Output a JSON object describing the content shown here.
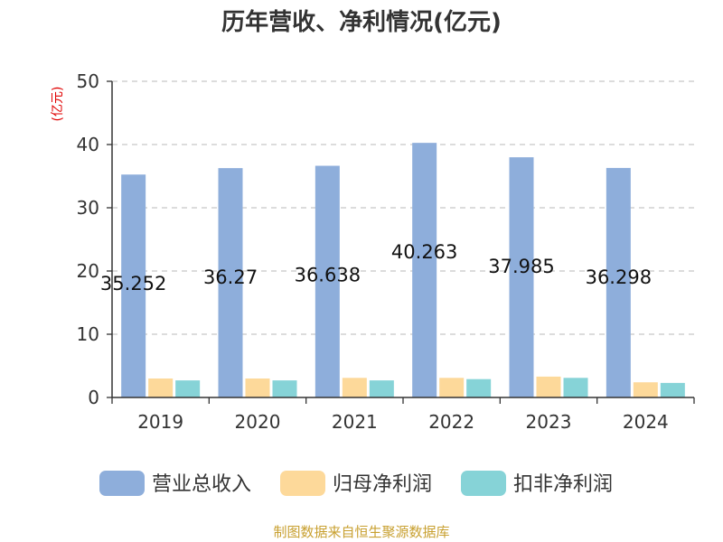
{
  "chart_data": {
    "type": "bar",
    "title": "历年营收、净利情况(亿元)",
    "ylabel": "(亿元)",
    "xlabel": "",
    "categories": [
      "2019",
      "2020",
      "2021",
      "2022",
      "2023",
      "2024"
    ],
    "ylim": [
      0,
      50
    ],
    "yticks": [
      0,
      10,
      20,
      30,
      40,
      50
    ],
    "grid": true,
    "legend_position": "bottom",
    "series": [
      {
        "name": "营业总收入",
        "color": "#8eaedb",
        "values": [
          35.252,
          36.27,
          36.638,
          40.263,
          37.985,
          36.298
        ],
        "labels": [
          "35.252",
          "36.27",
          "36.638",
          "40.263",
          "37.985",
          "36.298"
        ]
      },
      {
        "name": "归母净利润",
        "color": "#fdd99a",
        "values": [
          3.0,
          3.0,
          3.1,
          3.1,
          3.3,
          2.4
        ]
      },
      {
        "name": "扣非净利润",
        "color": "#86d3d7",
        "values": [
          2.7,
          2.7,
          2.7,
          2.9,
          3.1,
          2.3
        ]
      }
    ],
    "source": "制图数据来自恒生聚源数据库"
  }
}
